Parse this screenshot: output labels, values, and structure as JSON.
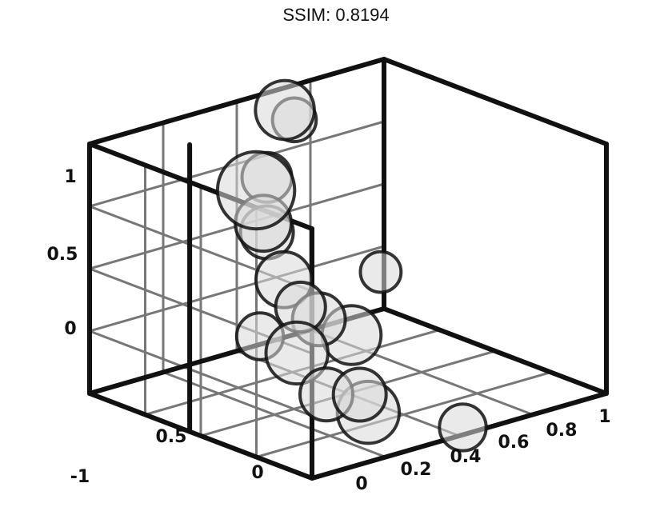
{
  "title": "SSIM: 0.8194",
  "chart_data": {
    "type": "scatter",
    "title": "SSIM: 0.8194",
    "style": "3d-bubble",
    "grid": true,
    "colors": {
      "stroke": "#111111",
      "grid": "#777777",
      "fill": "#d9d9d9"
    },
    "tick_labels": [
      {
        "text": "1",
        "role": "y-axis"
      },
      {
        "text": "0.5",
        "role": "y-axis"
      },
      {
        "text": "0",
        "role": "y-axis"
      },
      {
        "text": "0.5",
        "role": "depth-axis"
      },
      {
        "text": "0",
        "role": "depth-axis"
      },
      {
        "text": "-1",
        "role": "depth-axis"
      },
      {
        "text": "0",
        "role": "x-axis"
      },
      {
        "text": "0.2",
        "role": "x-axis"
      },
      {
        "text": "0.4",
        "role": "x-axis"
      },
      {
        "text": "0.6",
        "role": "x-axis"
      },
      {
        "text": "0.8",
        "role": "x-axis"
      },
      {
        "text": "1",
        "role": "x-axis"
      }
    ],
    "points": [
      {
        "x": 0.15,
        "y": 0.95,
        "z": 0.45,
        "size": 0.9
      },
      {
        "x": 0.25,
        "y": 0.75,
        "z": 0.55,
        "size": 0.55
      },
      {
        "x": 0.3,
        "y": 0.68,
        "z": 0.6,
        "size": 0.5
      },
      {
        "x": 0.55,
        "y": 1.0,
        "z": 0.85,
        "size": 0.6
      },
      {
        "x": 0.62,
        "y": 0.92,
        "z": 0.9,
        "size": 0.35
      },
      {
        "x": 0.05,
        "y": 0.45,
        "z": 0.3,
        "size": 0.4
      },
      {
        "x": 0.1,
        "y": 0.4,
        "z": 0.2,
        "size": 0.65
      },
      {
        "x": 0.15,
        "y": 0.55,
        "z": 0.25,
        "size": 0.45
      },
      {
        "x": 0.25,
        "y": 0.45,
        "z": 0.3,
        "size": 0.5
      },
      {
        "x": 0.32,
        "y": 0.5,
        "z": 0.55,
        "size": 0.55
      },
      {
        "x": 0.2,
        "y": 0.2,
        "z": 0.2,
        "size": 0.5
      },
      {
        "x": 0.2,
        "y": 0.25,
        "z": 0.05,
        "size": 0.5
      },
      {
        "x": 0.38,
        "y": 0.05,
        "z": 0.25,
        "size": 0.65
      },
      {
        "x": 0.55,
        "y": 0.2,
        "z": 0.55,
        "size": 0.6
      },
      {
        "x": 0.55,
        "y": 0.0,
        "z": 0.05,
        "size": 0.4
      },
      {
        "x": 0.8,
        "y": 0.3,
        "z": 0.75,
        "size": 0.3
      },
      {
        "x": 0.3,
        "y": 0.9,
        "z": 0.6,
        "size": 0.45
      }
    ]
  }
}
